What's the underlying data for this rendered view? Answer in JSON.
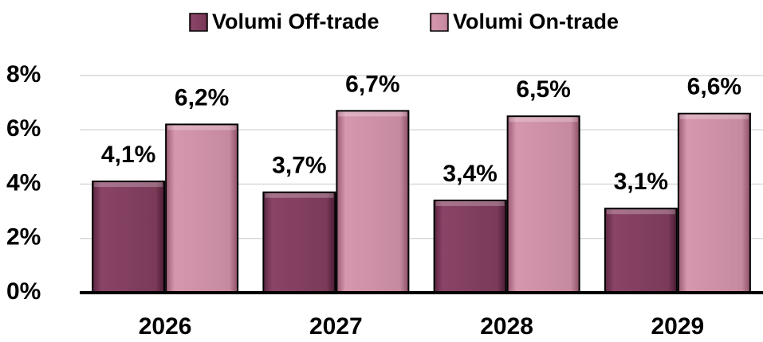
{
  "chart_data": {
    "type": "bar",
    "categories": [
      "2026",
      "2027",
      "2028",
      "2029"
    ],
    "series": [
      {
        "name": "Volumi Off-trade",
        "color": "#7a3a58",
        "values": [
          4.1,
          3.7,
          3.4,
          3.1
        ],
        "value_labels": [
          "4,1%",
          "3,7%",
          "3,4%",
          "3,1%"
        ]
      },
      {
        "name": "Volumi On-trade",
        "color": "#c68aa0",
        "values": [
          6.2,
          6.7,
          6.5,
          6.6
        ],
        "value_labels": [
          "6,2%",
          "6,7%",
          "6,5%",
          "6,6%"
        ]
      }
    ],
    "ylim": [
      0,
      8
    ],
    "yticks": [
      {
        "value": 0,
        "label": "0%"
      },
      {
        "value": 2,
        "label": "2%"
      },
      {
        "value": 4,
        "label": "4%"
      },
      {
        "value": 6,
        "label": "6%"
      },
      {
        "value": 8,
        "label": "8%"
      }
    ],
    "grid": true,
    "legend": "top"
  }
}
